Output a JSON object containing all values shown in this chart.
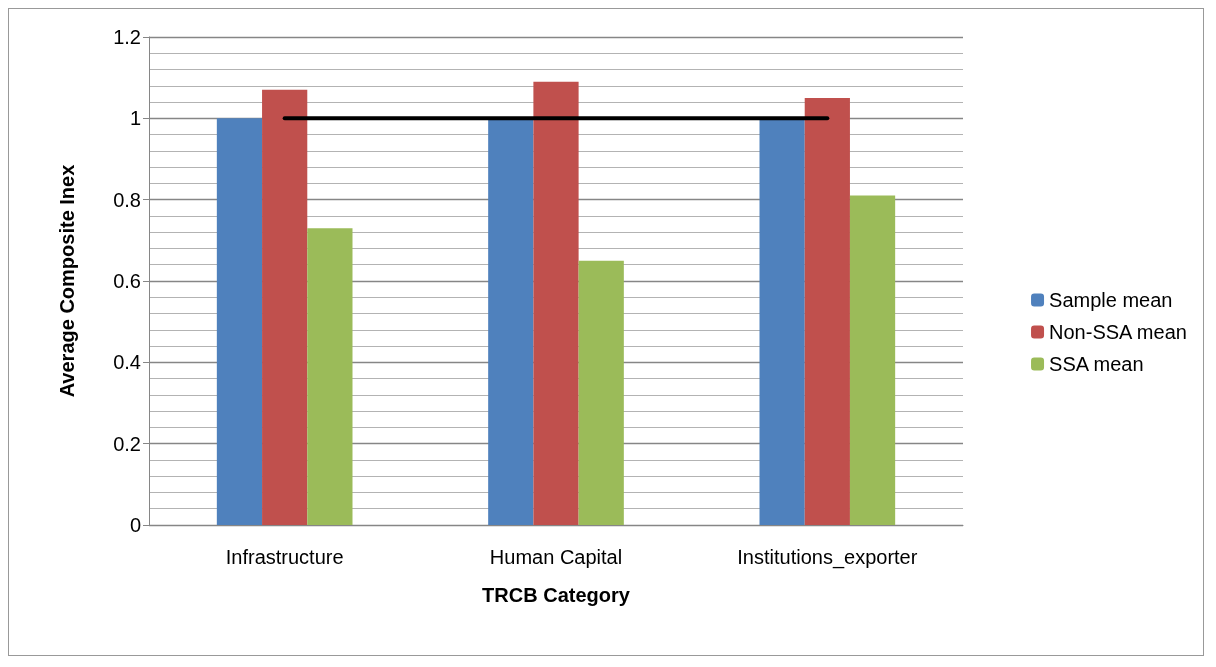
{
  "chart_data": {
    "type": "bar",
    "xlabel": "TRCB Category",
    "ylabel": "Average Composite Inex",
    "categories": [
      "Infrastructure",
      "Human Capital",
      "Institutions_exporter"
    ],
    "series": [
      {
        "name": "Sample mean",
        "color": "#4f81bd",
        "values": [
          1,
          1,
          1
        ]
      },
      {
        "name": "Non-SSA mean",
        "color": "#c0504d",
        "values": [
          1.07,
          1.09,
          1.05
        ]
      },
      {
        "name": "SSA mean",
        "color": "#9bbb59",
        "values": [
          0.73,
          0.65,
          0.81
        ]
      },
      {
        "type": "line",
        "color": "#000000",
        "values": [
          1,
          1,
          1
        ]
      }
    ],
    "ylim": [
      0,
      1.2
    ],
    "yticks": [
      0,
      0.2,
      0.4,
      0.6,
      0.8,
      1,
      1.2
    ],
    "grid": "y",
    "legend": "right",
    "marker": "none",
    "line_style": "solid"
  }
}
